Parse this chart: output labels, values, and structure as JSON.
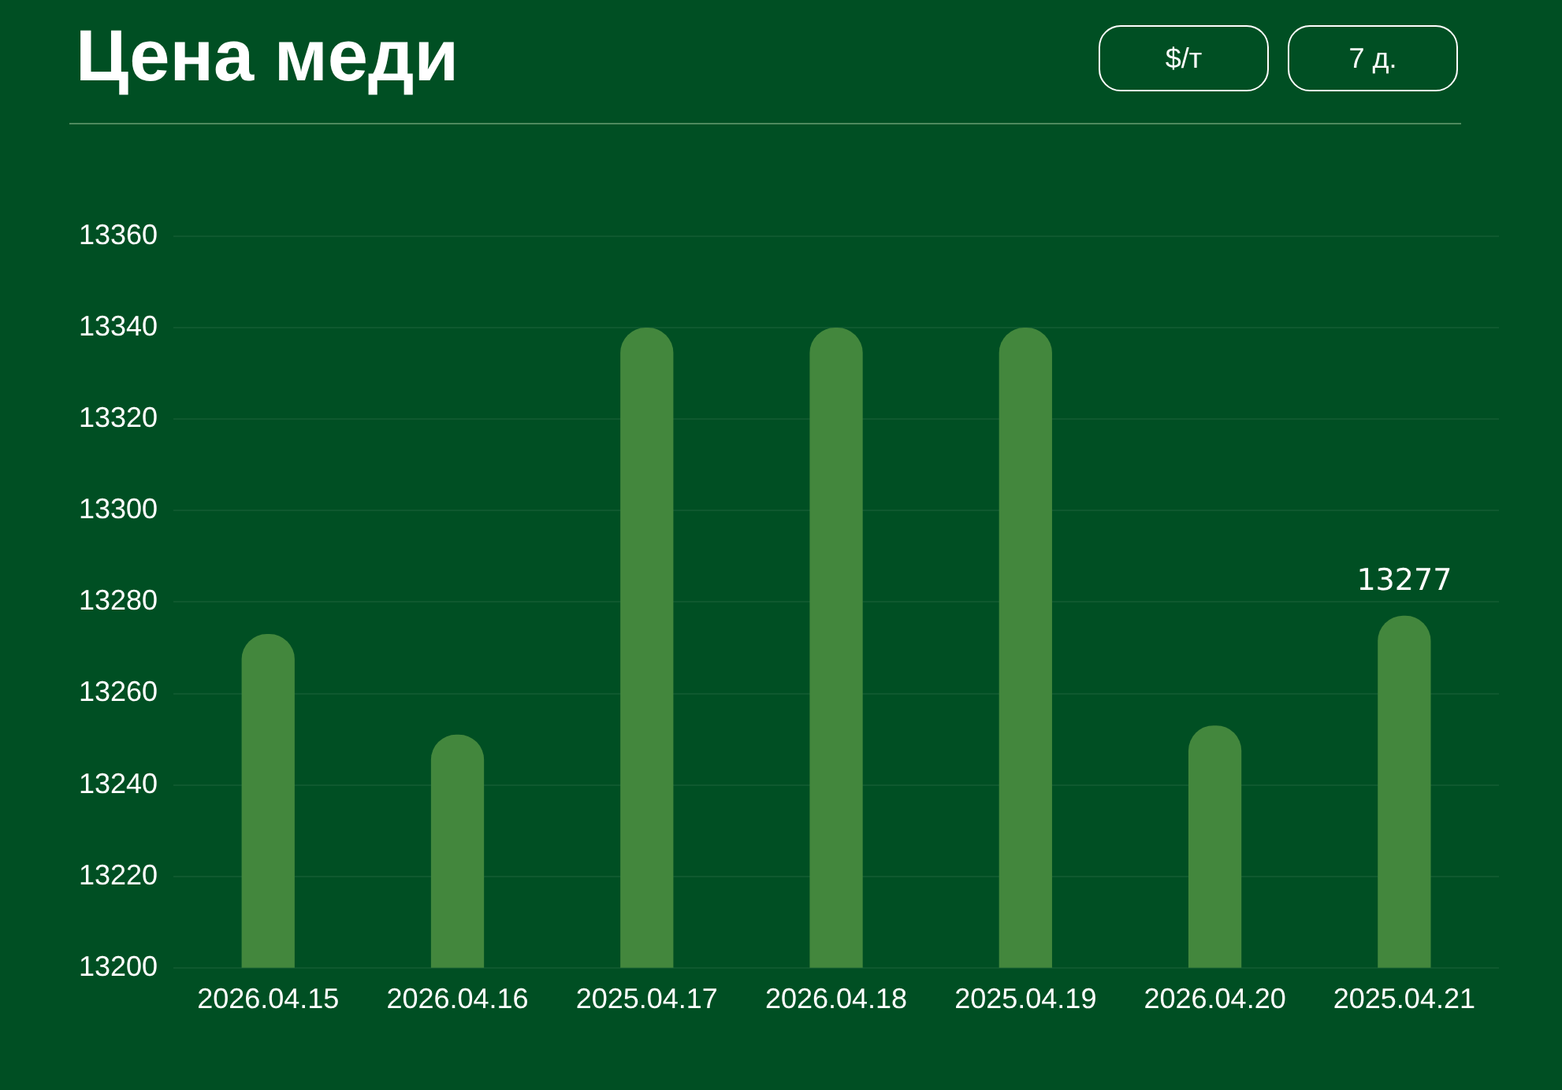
{
  "chart_data": {
    "type": "bar",
    "title": "Цена меди",
    "annotations": [
      "$/т",
      "7 д."
    ],
    "categories": [
      "2026.04.15",
      "2026.04.16",
      "2025.04.17",
      "2026.04.18",
      "2025.04.19",
      "2026.04.20",
      "2025.04.21"
    ],
    "values": [
      13273,
      13251,
      13340,
      13340,
      13340,
      13253,
      13277
    ],
    "value_labels": [
      null,
      null,
      null,
      null,
      null,
      null,
      "13277"
    ],
    "color": "#43873d",
    "ylim": [
      13200,
      13360
    ],
    "yticks": [
      13200,
      13220,
      13240,
      13260,
      13280,
      13300,
      13320,
      13340,
      13360
    ],
    "grid": "y",
    "legend": false
  }
}
